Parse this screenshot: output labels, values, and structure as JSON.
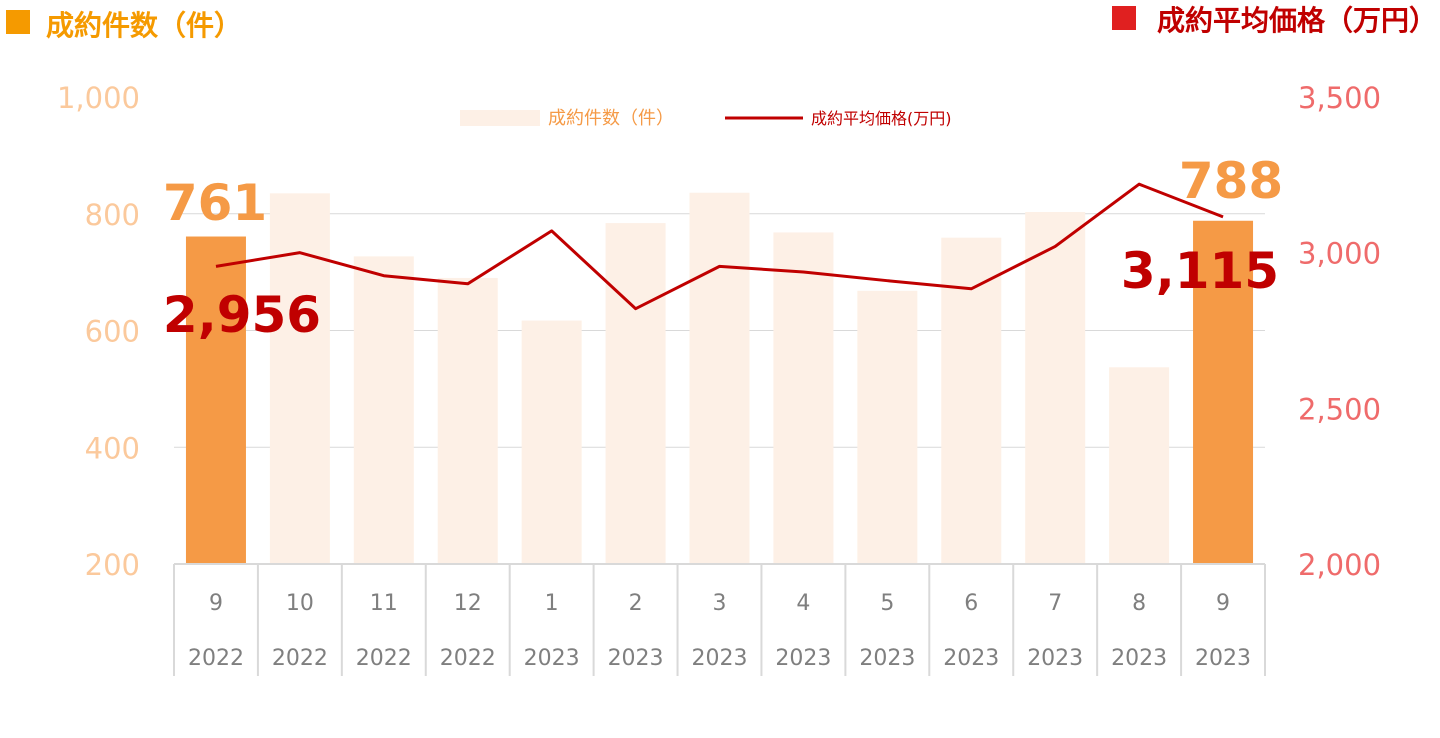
{
  "colors": {
    "bar_faded": "#fdf0e6",
    "bar_highlight": "#f59a46",
    "line": "#c00000",
    "left_axis": "#fbc99c",
    "right_axis": "#ef6b6b",
    "left_header": "#f59a00",
    "right_header": "#e02020",
    "grid": "#d9d9d9",
    "category": "#7f7f7f"
  },
  "chart_data": {
    "type": "bar",
    "headers": {
      "left": "成約件数（件）",
      "right": "成約平均価格（万円）"
    },
    "categories": [
      "9",
      "10",
      "11",
      "12",
      "1",
      "2",
      "3",
      "4",
      "5",
      "6",
      "7",
      "8",
      "9"
    ],
    "years": [
      "2022",
      "2022",
      "2022",
      "2022",
      "2023",
      "2023",
      "2023",
      "2023",
      "2023",
      "2023",
      "2023",
      "2023",
      "2023"
    ],
    "series": [
      {
        "name": "成約件数（件）",
        "type": "bar",
        "axis": "left",
        "values": [
          761,
          835,
          727,
          690,
          617,
          784,
          836,
          768,
          668,
          759,
          803,
          537,
          788
        ],
        "highlight": [
          true,
          false,
          false,
          false,
          false,
          false,
          false,
          false,
          false,
          false,
          false,
          false,
          true
        ]
      },
      {
        "name": "成約平均価格(万円)",
        "type": "line",
        "axis": "right",
        "values": [
          2956,
          3000,
          2926,
          2900,
          3070,
          2820,
          2956,
          2938,
          2910,
          2884,
          3020,
          3220,
          3115
        ]
      }
    ],
    "y_left": {
      "min": 200,
      "max": 1000,
      "ticks": [
        200,
        400,
        600,
        800,
        1000
      ],
      "tick_labels": [
        "200",
        "400",
        "600",
        "800",
        "1,000"
      ]
    },
    "y_right": {
      "min": 2000,
      "max": 3500,
      "ticks": [
        2000,
        2500,
        3000,
        3500
      ],
      "tick_labels": [
        "2,000",
        "2,500",
        "3,000",
        "3,500"
      ]
    },
    "annotations": {
      "bar_first": "761",
      "bar_last": "788",
      "line_first": "2,956",
      "line_last": "3,115"
    },
    "grid": true,
    "legend_position": "top-center"
  }
}
